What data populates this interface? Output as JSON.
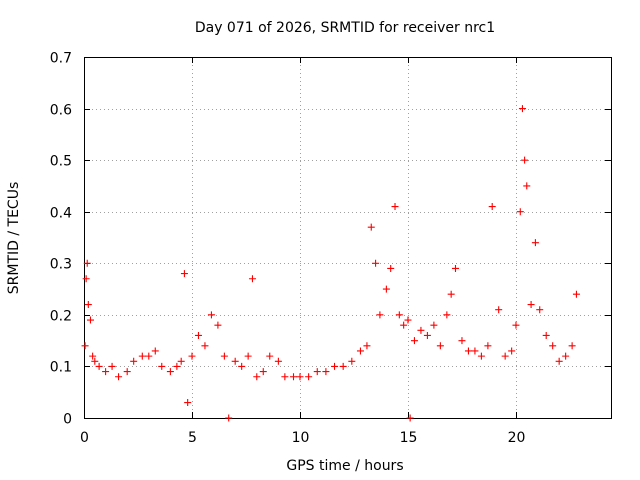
{
  "chart_data": {
    "type": "scatter",
    "title": "Day 071 of 2026, SRMTID for receiver nrc1",
    "xlabel": "GPS time / hours",
    "ylabel": "SRMTID / TECUs",
    "xlim": [
      0,
      24.4
    ],
    "ylim": [
      0,
      0.7
    ],
    "x_ticks": [
      0,
      5,
      10,
      15,
      20
    ],
    "x_tick_labels": [
      "0",
      "5",
      "10",
      "15",
      "20"
    ],
    "y_ticks": [
      0,
      0.1,
      0.2,
      0.3,
      0.4,
      0.5,
      0.6,
      0.7
    ],
    "y_tick_labels": [
      "0",
      "0.1",
      "0.2",
      "0.3",
      "0.4",
      "0.5",
      "0.6",
      "0.7"
    ],
    "grid": true,
    "marker": "+",
    "series": [
      {
        "name": "SRMTID",
        "color": "#ff0000",
        "x": [
          0.05,
          0.1,
          0.15,
          0.2,
          0.3,
          0.4,
          0.5,
          0.7,
          1.0,
          1.3,
          1.6,
          2.0,
          2.3,
          2.7,
          3.0,
          3.3,
          3.6,
          4.0,
          4.3,
          4.5,
          4.65,
          4.8,
          5.0,
          5.3,
          5.6,
          5.9,
          6.2,
          6.5,
          6.7,
          7.0,
          7.3,
          7.6,
          7.8,
          8.0,
          8.3,
          8.6,
          9.0,
          9.3,
          9.7,
          10.0,
          10.4,
          10.8,
          11.2,
          11.6,
          12.0,
          12.4,
          12.8,
          13.1,
          13.3,
          13.5,
          13.7,
          14.0,
          14.2,
          14.4,
          14.6,
          14.8,
          15.0,
          15.1,
          15.3,
          15.6,
          15.9,
          16.2,
          16.5,
          16.8,
          17.0,
          17.2,
          17.5,
          17.8,
          18.1,
          18.4,
          18.7,
          18.9,
          19.2,
          19.5,
          19.8,
          20.0,
          20.2,
          20.3,
          20.4,
          20.5,
          20.7,
          20.9,
          21.1,
          21.4,
          21.7,
          22.0,
          22.3,
          22.6,
          22.8
        ],
        "y": [
          0.14,
          0.27,
          0.3,
          0.22,
          0.19,
          0.12,
          0.11,
          0.1,
          0.09,
          0.1,
          0.08,
          0.09,
          0.11,
          0.12,
          0.12,
          0.13,
          0.1,
          0.09,
          0.1,
          0.11,
          0.28,
          0.03,
          0.12,
          0.16,
          0.14,
          0.2,
          0.18,
          0.12,
          0.0,
          0.11,
          0.1,
          0.12,
          0.27,
          0.08,
          0.09,
          0.12,
          0.11,
          0.08,
          0.08,
          0.08,
          0.08,
          0.09,
          0.09,
          0.1,
          0.1,
          0.11,
          0.13,
          0.14,
          0.37,
          0.3,
          0.2,
          0.25,
          0.29,
          0.41,
          0.2,
          0.18,
          0.19,
          0.0,
          0.15,
          0.17,
          0.16,
          0.18,
          0.14,
          0.2,
          0.24,
          0.29,
          0.15,
          0.13,
          0.13,
          0.12,
          0.14,
          0.41,
          0.21,
          0.12,
          0.13,
          0.18,
          0.4,
          0.6,
          0.5,
          0.45,
          0.22,
          0.34,
          0.21,
          0.16,
          0.14,
          0.11,
          0.12,
          0.14,
          0.24
        ]
      }
    ]
  }
}
